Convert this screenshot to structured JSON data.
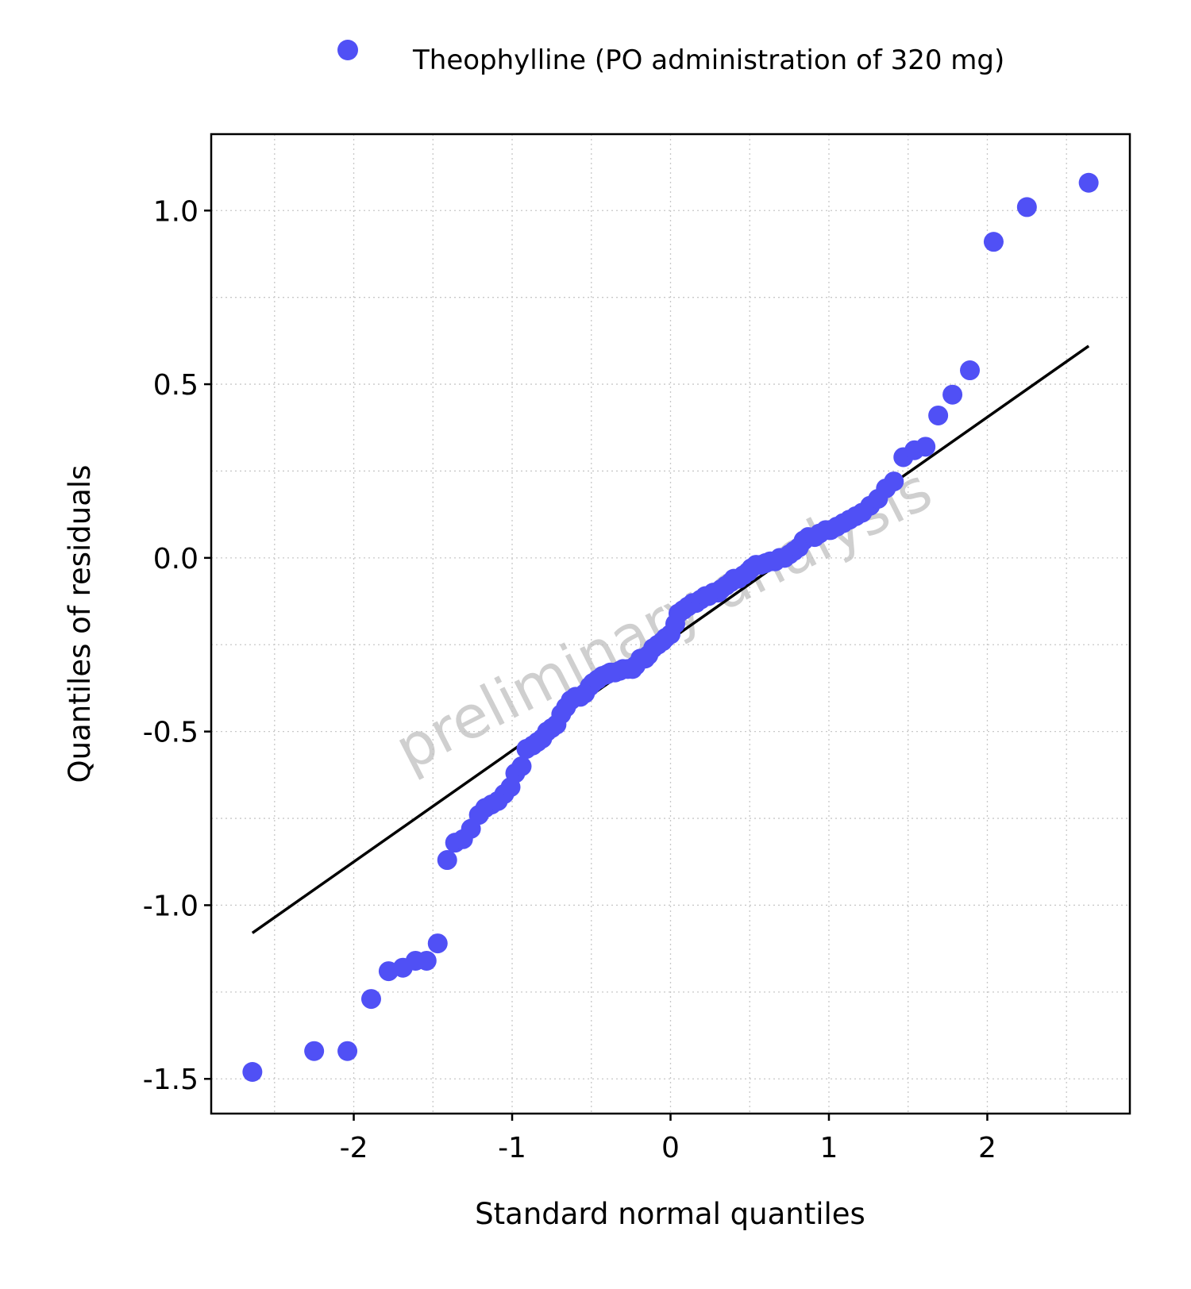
{
  "chart_data": {
    "type": "scatter",
    "xlabel": "Standard normal quantiles",
    "ylabel": "Quantiles of residuals",
    "xlim": [
      -2.9,
      2.9
    ],
    "ylim": [
      -1.6,
      1.22
    ],
    "x_ticks": [
      {
        "value": -2,
        "label": "-2"
      },
      {
        "value": -1,
        "label": "-1"
      },
      {
        "value": 0,
        "label": "0"
      },
      {
        "value": 1,
        "label": "1"
      },
      {
        "value": 2,
        "label": "2"
      }
    ],
    "y_ticks": [
      {
        "value": 1.0,
        "label": "1.0"
      },
      {
        "value": 0.5,
        "label": "0.5"
      },
      {
        "value": 0.0,
        "label": "0.0"
      },
      {
        "value": -0.5,
        "label": "-0.5"
      },
      {
        "value": -1.0,
        "label": "-1.0"
      },
      {
        "value": -1.5,
        "label": "-1.5"
      }
    ],
    "grid": true,
    "legend_position": "top",
    "reference_line": {
      "x": [
        -2.64,
        2.64
      ],
      "y": [
        -1.08,
        0.61
      ],
      "color": "#000000"
    },
    "watermark": "preliminary analysis",
    "series": [
      {
        "name": "Theophylline (PO administration of 320 mg)",
        "color": "#5050f5",
        "points": [
          [
            -2.64,
            -1.48
          ],
          [
            -2.25,
            -1.42
          ],
          [
            -2.04,
            -1.42
          ],
          [
            -1.89,
            -1.27
          ],
          [
            -1.78,
            -1.19
          ],
          [
            -1.69,
            -1.18
          ],
          [
            -1.61,
            -1.16
          ],
          [
            -1.54,
            -1.16
          ],
          [
            -1.47,
            -1.11
          ],
          [
            -1.41,
            -0.87
          ],
          [
            -1.36,
            -0.82
          ],
          [
            -1.31,
            -0.81
          ],
          [
            -1.26,
            -0.78
          ],
          [
            -1.21,
            -0.74
          ],
          [
            -1.17,
            -0.72
          ],
          [
            -1.13,
            -0.71
          ],
          [
            -1.09,
            -0.7
          ],
          [
            -1.05,
            -0.68
          ],
          [
            -1.01,
            -0.66
          ],
          [
            -0.98,
            -0.62
          ],
          [
            -0.94,
            -0.6
          ],
          [
            -0.91,
            -0.55
          ],
          [
            -0.87,
            -0.54
          ],
          [
            -0.84,
            -0.53
          ],
          [
            -0.81,
            -0.52
          ],
          [
            -0.78,
            -0.5
          ],
          [
            -0.75,
            -0.49
          ],
          [
            -0.72,
            -0.48
          ],
          [
            -0.69,
            -0.45
          ],
          [
            -0.66,
            -0.43
          ],
          [
            -0.63,
            -0.41
          ],
          [
            -0.6,
            -0.4
          ],
          [
            -0.57,
            -0.4
          ],
          [
            -0.54,
            -0.39
          ],
          [
            -0.51,
            -0.37
          ],
          [
            -0.49,
            -0.36
          ],
          [
            -0.46,
            -0.35
          ],
          [
            -0.43,
            -0.34
          ],
          [
            -0.4,
            -0.335
          ],
          [
            -0.38,
            -0.33
          ],
          [
            -0.35,
            -0.33
          ],
          [
            -0.32,
            -0.325
          ],
          [
            -0.3,
            -0.32
          ],
          [
            -0.27,
            -0.32
          ],
          [
            -0.24,
            -0.32
          ],
          [
            -0.22,
            -0.31
          ],
          [
            -0.19,
            -0.29
          ],
          [
            -0.16,
            -0.29
          ],
          [
            -0.14,
            -0.28
          ],
          [
            -0.11,
            -0.26
          ],
          [
            -0.08,
            -0.25
          ],
          [
            -0.05,
            -0.24
          ],
          [
            -0.03,
            -0.23
          ],
          [
            0.0,
            -0.22
          ],
          [
            0.03,
            -0.19
          ],
          [
            0.05,
            -0.16
          ],
          [
            0.08,
            -0.15
          ],
          [
            0.11,
            -0.14
          ],
          [
            0.14,
            -0.13
          ],
          [
            0.16,
            -0.13
          ],
          [
            0.19,
            -0.12
          ],
          [
            0.22,
            -0.11
          ],
          [
            0.24,
            -0.11
          ],
          [
            0.27,
            -0.1
          ],
          [
            0.3,
            -0.1
          ],
          [
            0.32,
            -0.09
          ],
          [
            0.35,
            -0.08
          ],
          [
            0.38,
            -0.07
          ],
          [
            0.4,
            -0.06
          ],
          [
            0.43,
            -0.06
          ],
          [
            0.46,
            -0.05
          ],
          [
            0.49,
            -0.04
          ],
          [
            0.51,
            -0.03
          ],
          [
            0.54,
            -0.02
          ],
          [
            0.57,
            -0.02
          ],
          [
            0.6,
            -0.015
          ],
          [
            0.63,
            -0.01
          ],
          [
            0.66,
            -0.01
          ],
          [
            0.69,
            0.0
          ],
          [
            0.72,
            0.0
          ],
          [
            0.75,
            0.01
          ],
          [
            0.78,
            0.02
          ],
          [
            0.81,
            0.03
          ],
          [
            0.84,
            0.05
          ],
          [
            0.87,
            0.06
          ],
          [
            0.91,
            0.06
          ],
          [
            0.94,
            0.07
          ],
          [
            0.98,
            0.08
          ],
          [
            1.01,
            0.08
          ],
          [
            1.05,
            0.09
          ],
          [
            1.09,
            0.1
          ],
          [
            1.13,
            0.11
          ],
          [
            1.17,
            0.12
          ],
          [
            1.21,
            0.13
          ],
          [
            1.26,
            0.15
          ],
          [
            1.31,
            0.17
          ],
          [
            1.36,
            0.2
          ],
          [
            1.41,
            0.22
          ],
          [
            1.47,
            0.29
          ],
          [
            1.54,
            0.31
          ],
          [
            1.61,
            0.32
          ],
          [
            1.69,
            0.41
          ],
          [
            1.78,
            0.47
          ],
          [
            1.89,
            0.54
          ],
          [
            2.04,
            0.91
          ],
          [
            2.25,
            1.01
          ],
          [
            2.64,
            1.08
          ]
        ]
      }
    ]
  }
}
